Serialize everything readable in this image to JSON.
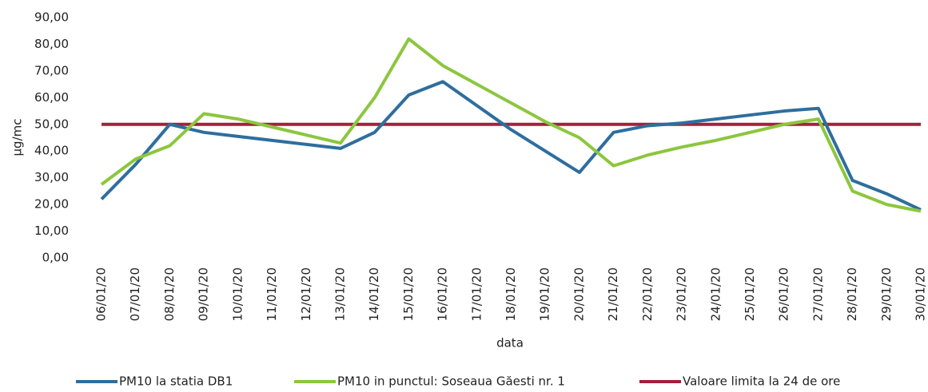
{
  "chart_data": {
    "type": "line",
    "x_label": "data",
    "y_label": "µg/mc",
    "categories": [
      "06/01/20",
      "07/01/20",
      "08/01/20",
      "09/01/20",
      "10/01/20",
      "11/01/20",
      "12/01/20",
      "13/01/20",
      "14/01/20",
      "15/01/20",
      "16/01/20",
      "17/01/20",
      "18/01/20",
      "19/01/20",
      "20/01/20",
      "21/01/20",
      "22/01/20",
      "23/01/20",
      "24/01/20",
      "25/01/20",
      "26/01/20",
      "27/01/20",
      "28/01/20",
      "29/01/20",
      "30/01/20"
    ],
    "series": [
      {
        "name": "PM10 la statia DB1",
        "color": "#2e6e9e",
        "values": [
          22,
          35,
          50,
          47,
          45.5,
          44,
          42.5,
          41,
          47,
          61,
          66,
          57,
          48,
          40,
          32,
          47,
          49.5,
          50.5,
          52,
          53.5,
          55,
          56,
          29,
          24,
          18
        ]
      },
      {
        "name": "PM10 in punctul: Soseaua Găesti nr. 1",
        "color": "#8cc63e",
        "values": [
          27.5,
          37,
          42,
          54,
          52,
          49,
          46,
          43,
          60,
          82,
          72,
          65,
          58,
          51,
          45,
          34.5,
          38.5,
          41.5,
          44,
          47,
          50,
          52,
          25,
          20,
          17.5
        ]
      },
      {
        "name": "Valoare limita la 24 de ore",
        "color": "#a3213b",
        "values": [
          50,
          50,
          50,
          50,
          50,
          50,
          50,
          50,
          50,
          50,
          50,
          50,
          50,
          50,
          50,
          50,
          50,
          50,
          50,
          50,
          50,
          50,
          50,
          50,
          50
        ]
      }
    ],
    "ylim": [
      0,
      90
    ],
    "yticks": [
      {
        "value": 0,
        "label": "0,00"
      },
      {
        "value": 10,
        "label": "10,00"
      },
      {
        "value": 20,
        "label": "20,00"
      },
      {
        "value": 30,
        "label": "30,00"
      },
      {
        "value": 40,
        "label": "40,00"
      },
      {
        "value": 50,
        "label": "50,00"
      },
      {
        "value": 60,
        "label": "60,00"
      },
      {
        "value": 70,
        "label": "70,00"
      },
      {
        "value": 80,
        "label": "80,00"
      },
      {
        "value": 90,
        "label": "90,00"
      }
    ],
    "grid": false,
    "legend": "bottom"
  }
}
